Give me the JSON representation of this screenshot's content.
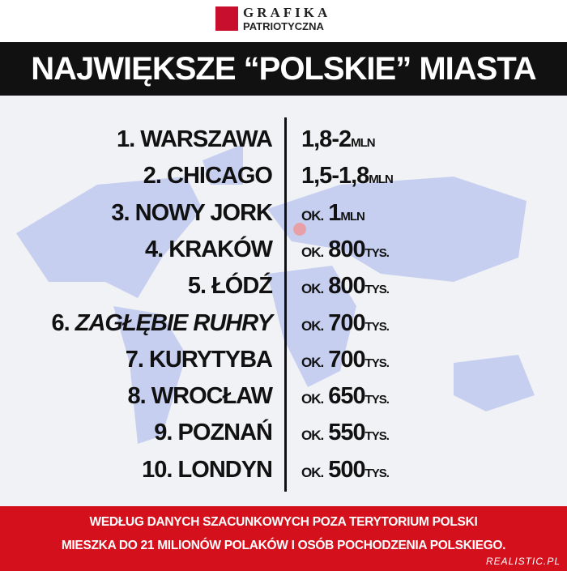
{
  "header": {
    "brand_top": "GRAFIKA",
    "brand_bottom": "PATRIOTYCZNA"
  },
  "title": "NAJWIĘKSZE “POLSKIE” MIASTA",
  "rows": [
    {
      "rank": "1.",
      "name": "WARSZAWA",
      "value": "1,8-2",
      "unit": "MLN"
    },
    {
      "rank": "2.",
      "name": "CHICAGO",
      "value": "1,5-1,8",
      "unit": "MLN"
    },
    {
      "rank": "3.",
      "name": "NOWY JORK",
      "prefix": "OK.",
      "value": "1",
      "unit": "MLN"
    },
    {
      "rank": "4.",
      "name": "KRAKÓW",
      "prefix": "OK.",
      "value": "800",
      "unit": "TYS."
    },
    {
      "rank": "5.",
      "name": "ŁÓDŹ",
      "prefix": "OK.",
      "value": "800",
      "unit": "TYS."
    },
    {
      "rank": "6.",
      "name": "ZAGŁĘBIE RUHRY",
      "italic": true,
      "prefix": "OK.",
      "value": "700",
      "unit": "TYS."
    },
    {
      "rank": "7.",
      "name": "KURYTYBA",
      "prefix": "OK.",
      "value": "700",
      "unit": "TYS."
    },
    {
      "rank": "8.",
      "name": "WROCŁAW",
      "prefix": "OK.",
      "value": "650",
      "unit": "TYS."
    },
    {
      "rank": "9.",
      "name": "POZNAŃ",
      "prefix": "OK.",
      "value": "550",
      "unit": "TYS."
    },
    {
      "rank": "10.",
      "name": "LONDYN",
      "prefix": "OK.",
      "value": "500",
      "unit": "TYS."
    }
  ],
  "footer": {
    "line1": "WEDŁUG DANYCH SZACUNKOWYCH POZA TERYTORIUM POLSKI",
    "line2": "MIESZKA DO 21 MILIONÓW POLAKÓW I OSÓB POCHODZENIA POLSKIEGO."
  },
  "watermark": "REALISTIC.PL"
}
